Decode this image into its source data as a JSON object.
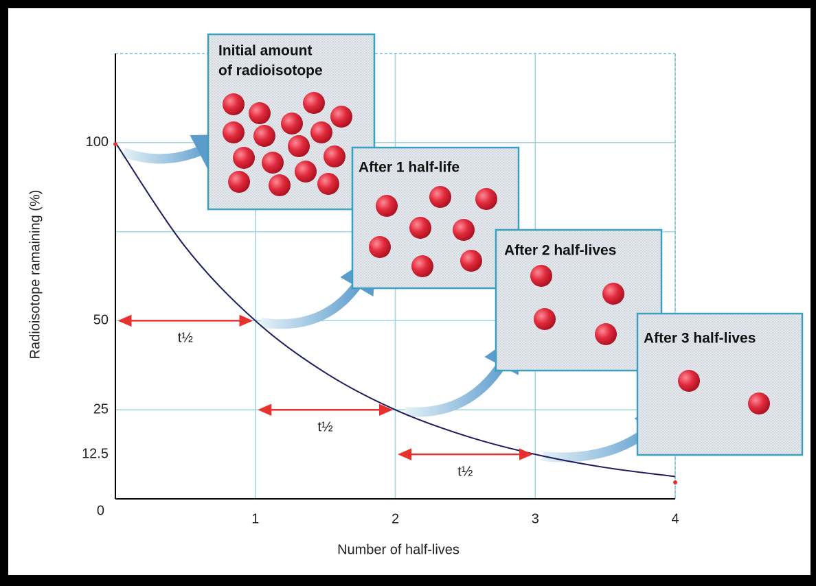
{
  "chart_data": {
    "type": "line",
    "x_label": "Number of half-lives",
    "y_label": "Radioisotope ramaining (%)",
    "x": [
      0,
      0.5,
      1,
      1.5,
      2,
      2.5,
      3,
      3.5,
      4
    ],
    "values": [
      100,
      70.7,
      50,
      35.4,
      25,
      17.7,
      12.5,
      8.8,
      6.25
    ],
    "color": "#1c1c5e",
    "xlim": [
      0,
      4
    ],
    "ylim": [
      0,
      125
    ],
    "xticks": [
      1,
      2,
      3,
      4
    ],
    "yticks": [
      0,
      12.5,
      25,
      50,
      100
    ],
    "ygrid": [
      25,
      50,
      75,
      100
    ],
    "grid": true,
    "annotations": [
      {
        "from": 0,
        "to": 1,
        "y": 50,
        "label": "t½"
      },
      {
        "from": 1,
        "to": 2,
        "y": 25,
        "label": "t½"
      },
      {
        "from": 2,
        "to": 3,
        "y": 12.5,
        "label": "t½"
      }
    ],
    "panels": [
      {
        "lines": [
          "Initial amount",
          "of radioisotope"
        ],
        "count": 16
      },
      {
        "lines": [
          "After 1 half-life"
        ],
        "count": 8
      },
      {
        "lines": [
          "After 2 half-lives"
        ],
        "count": 4
      },
      {
        "lines": [
          "After 3 half-lives"
        ],
        "count": 2
      }
    ]
  }
}
